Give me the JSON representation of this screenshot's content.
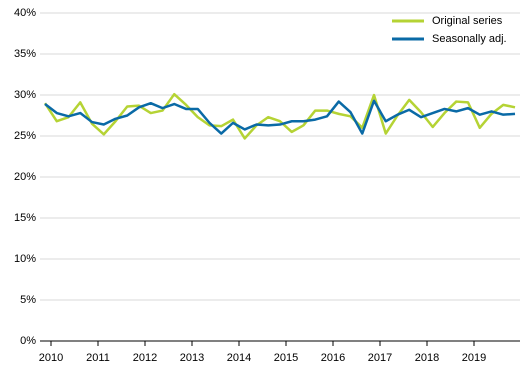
{
  "chart_data": {
    "type": "line",
    "categories": [
      "2010",
      null,
      null,
      null,
      "2011",
      null,
      null,
      null,
      "2012",
      null,
      null,
      null,
      "2013",
      null,
      null,
      null,
      "2014",
      null,
      null,
      null,
      "2015",
      null,
      null,
      null,
      "2016",
      null,
      null,
      null,
      "2017",
      null,
      null,
      null,
      "2018",
      null,
      null,
      null,
      "2019",
      null,
      null,
      null,
      null
    ],
    "series": [
      {
        "name": "Original series",
        "color": "#b5d334",
        "values": [
          29,
          26.8,
          27.3,
          29.1,
          26.5,
          25.2,
          26.8,
          28.6,
          28.7,
          27.8,
          28.1,
          30.1,
          28.8,
          27.3,
          26.3,
          26.2,
          27.0,
          24.7,
          26.3,
          27.3,
          26.8,
          25.5,
          26.3,
          28.1,
          28.1,
          27.7,
          27.4,
          26.0,
          30.0,
          25.3,
          27.5,
          29.4,
          27.9,
          26.1,
          27.8,
          29.2,
          29.1,
          26.0,
          27.7,
          28.8,
          28.5
        ]
      },
      {
        "name": "Seasonally adj.",
        "color": "#0a6aa6",
        "values": [
          28.9,
          27.8,
          27.4,
          27.8,
          26.7,
          26.4,
          27.1,
          27.5,
          28.5,
          29.0,
          28.4,
          28.9,
          28.3,
          28.3,
          26.6,
          25.3,
          26.6,
          25.8,
          26.4,
          26.3,
          26.4,
          26.8,
          26.8,
          27.0,
          27.4,
          29.2,
          27.9,
          25.3,
          29.3,
          26.8,
          27.6,
          28.2,
          27.3,
          27.8,
          28.3,
          28.0,
          28.4,
          27.6,
          28.0,
          27.6,
          27.7
        ]
      }
    ],
    "ylim": [
      0,
      40
    ],
    "yticks": [
      {
        "value": 0,
        "label": "0%"
      },
      {
        "value": 5,
        "label": "5%"
      },
      {
        "value": 10,
        "label": "10%"
      },
      {
        "value": 15,
        "label": "15%"
      },
      {
        "value": 20,
        "label": "20%"
      },
      {
        "value": 25,
        "label": "25%"
      },
      {
        "value": 30,
        "label": "30%"
      },
      {
        "value": 35,
        "label": "35%"
      },
      {
        "value": 40,
        "label": "40%"
      }
    ],
    "grid": true,
    "legend": "upper right"
  }
}
